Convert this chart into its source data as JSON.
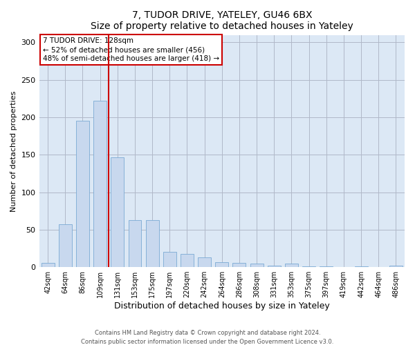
{
  "title1": "7, TUDOR DRIVE, YATELEY, GU46 6BX",
  "title2": "Size of property relative to detached houses in Yateley",
  "xlabel": "Distribution of detached houses by size in Yateley",
  "ylabel": "Number of detached properties",
  "annotation_line1": "7 TUDOR DRIVE: 128sqm",
  "annotation_line2": "← 52% of detached houses are smaller (456)",
  "annotation_line3": "48% of semi-detached houses are larger (418) →",
  "categories": [
    "42sqm",
    "64sqm",
    "86sqm",
    "109sqm",
    "131sqm",
    "153sqm",
    "175sqm",
    "197sqm",
    "220sqm",
    "242sqm",
    "264sqm",
    "286sqm",
    "308sqm",
    "331sqm",
    "353sqm",
    "375sqm",
    "397sqm",
    "419sqm",
    "442sqm",
    "464sqm",
    "486sqm"
  ],
  "values": [
    6,
    57,
    195,
    222,
    147,
    63,
    63,
    20,
    18,
    13,
    7,
    6,
    5,
    2,
    5,
    1,
    1,
    0,
    1,
    0,
    2
  ],
  "bar_color": "#c8d8ee",
  "bar_edge_color": "#7aaad4",
  "vline_color": "#cc0000",
  "vline_x": 3.5,
  "annotation_box_color": "#cc0000",
  "background_color": "#ffffff",
  "plot_bg_color": "#dce8f5",
  "grid_color": "#b0b8c8",
  "ylim": [
    0,
    310
  ],
  "yticks": [
    0,
    50,
    100,
    150,
    200,
    250,
    300
  ],
  "bar_width": 0.75,
  "footer_line1": "Contains HM Land Registry data © Crown copyright and database right 2024.",
  "footer_line2": "Contains public sector information licensed under the Open Government Licence v3.0."
}
